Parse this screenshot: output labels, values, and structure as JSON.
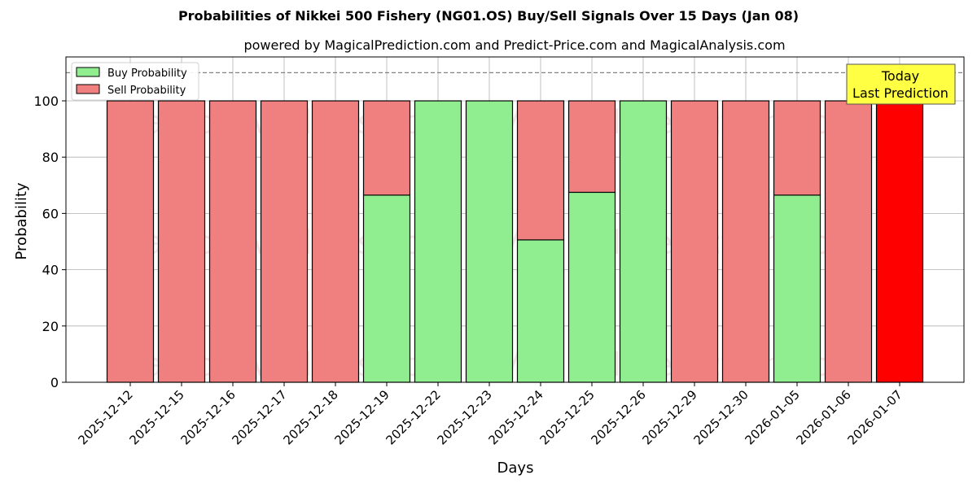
{
  "chart_data": {
    "type": "bar",
    "stacked": true,
    "title": "Probabilities of Nikkei 500 Fishery (NG01.OS) Buy/Sell Signals Over 15 Days (Jan 08)",
    "subtitle": "powered by MagicalPrediction.com and Predict-Price.com and MagicalAnalysis.com",
    "xlabel": "Days",
    "ylabel": "Probability",
    "ylim": [
      0,
      115
    ],
    "yticks": [
      0,
      20,
      40,
      60,
      80,
      100
    ],
    "reference_line": 110,
    "categories": [
      "2025-12-12",
      "2025-12-15",
      "2025-12-16",
      "2025-12-17",
      "2025-12-18",
      "2025-12-19",
      "2025-12-22",
      "2025-12-23",
      "2025-12-24",
      "2025-12-25",
      "2025-12-26",
      "2025-12-29",
      "2025-12-30",
      "2026-01-05",
      "2026-01-06",
      "2026-01-07"
    ],
    "series": [
      {
        "name": "Buy Probability",
        "color": "#90ee90",
        "values": [
          0,
          0,
          0,
          0,
          0,
          66.5,
          100,
          100,
          50.6,
          67.5,
          100,
          0,
          0,
          66.5,
          0,
          0
        ]
      },
      {
        "name": "Sell Probability",
        "color": "#f08080",
        "values": [
          100,
          100,
          100,
          100,
          100,
          33.5,
          0,
          0,
          49.4,
          32.5,
          0,
          100,
          100,
          33.5,
          100,
          100
        ]
      }
    ],
    "highlight": {
      "index": 15,
      "color": "#ff0000"
    },
    "annotation": {
      "line1": "Today",
      "line2": "Last Prediction",
      "bg": "#ffff44"
    },
    "legend": {
      "position": "upper left",
      "items": [
        "Buy Probability",
        "Sell Probability"
      ]
    },
    "watermarks": [
      "MagicalAnalysis.com",
      "MagicalPrediction.com"
    ],
    "grid": true
  }
}
